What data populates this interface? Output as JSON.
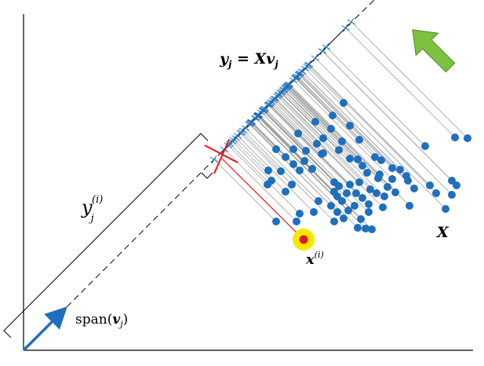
{
  "labels": {
    "y_equation": {
      "y": "y",
      "sub_j": "j",
      "eq": " = ",
      "X": "X",
      "v": "v",
      "sub_j2": "j"
    },
    "y_component": {
      "y": "y",
      "sub": "j",
      "sup": "(i)"
    },
    "x_point": {
      "x": "x",
      "sup": "(i)"
    },
    "matrix_label": "X",
    "span": {
      "text": "span(",
      "v": "v",
      "sub": "j",
      "close": ")"
    }
  },
  "colors": {
    "points": "#1f6fbd",
    "highlight_point": "#e8141b",
    "highlight_halo": "#f5ea00",
    "projection_marker": "#e8141b",
    "projection_line": "#9e9e9e",
    "arrow_green": "#7dc23f",
    "vector_arrow": "#1f6fbd"
  },
  "icons": [
    "green-arrow-icon",
    "basis-vector-arrow-icon",
    "red-cross-marker-icon"
  ]
}
